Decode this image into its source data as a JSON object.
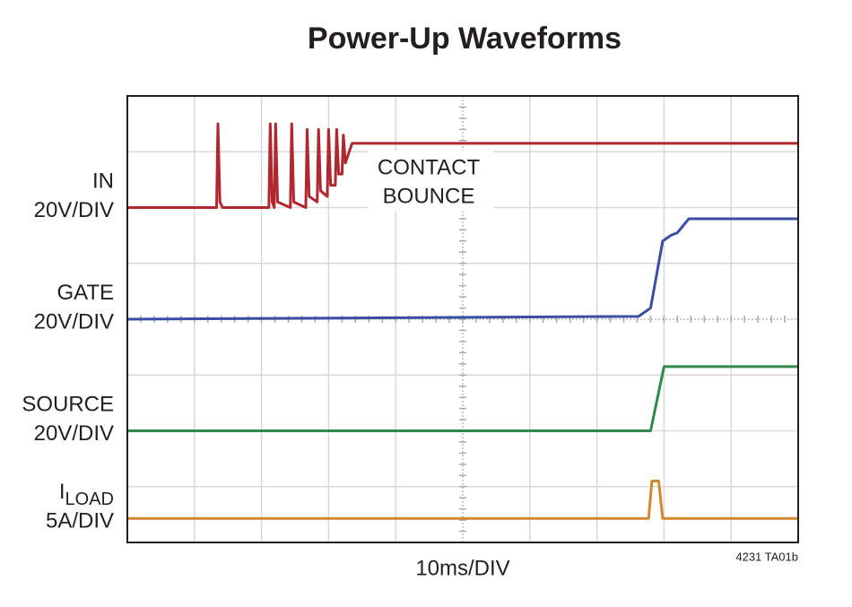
{
  "chart_data": {
    "type": "line",
    "title": "Power-Up Waveforms",
    "x_label": "10ms/DIV",
    "note": "4231 TA01b",
    "annotation": [
      "CONTACT",
      "BOUNCE"
    ],
    "xlim": [
      0,
      10
    ],
    "ylim": [
      0,
      8
    ],
    "xticks": [
      0,
      1,
      2,
      3,
      4,
      5,
      6,
      7,
      8,
      9,
      10
    ],
    "yticks": [
      0,
      1,
      2,
      3,
      4,
      5,
      6,
      7,
      8
    ],
    "grid": true,
    "series": [
      {
        "name": "IN",
        "scale": "20V/DIV",
        "color": "#b0272d",
        "x": [
          0,
          1.33,
          1.35,
          1.38,
          1.42,
          2.11,
          2.13,
          2.16,
          2.19,
          2.21,
          2.24,
          2.43,
          2.45,
          2.48,
          2.66,
          2.68,
          2.71,
          2.83,
          2.85,
          2.88,
          2.98,
          3.0,
          3.03,
          3.1,
          3.12,
          3.15,
          3.2,
          3.22,
          3.25,
          3.35,
          10
        ],
        "values": [
          6.0,
          6.0,
          7.5,
          6.1,
          6.0,
          6.0,
          7.5,
          6.1,
          6.0,
          7.5,
          6.1,
          6.0,
          7.5,
          6.1,
          6.0,
          7.4,
          6.2,
          6.1,
          7.4,
          6.3,
          6.2,
          7.4,
          6.4,
          6.4,
          7.4,
          6.6,
          6.6,
          7.3,
          6.8,
          7.15,
          7.15
        ]
      },
      {
        "name": "GATE",
        "scale": "20V/DIV",
        "color": "#3a4ea6",
        "x": [
          0,
          7.62,
          7.8,
          7.98,
          8.1,
          8.2,
          8.37,
          10
        ],
        "values": [
          4.0,
          4.05,
          4.2,
          5.4,
          5.5,
          5.55,
          5.8,
          5.8
        ]
      },
      {
        "name": "SOURCE",
        "scale": "20V/DIV",
        "color": "#2e8a48",
        "x": [
          0,
          7.8,
          8.0,
          10
        ],
        "values": [
          2.0,
          2.0,
          3.15,
          3.15
        ]
      },
      {
        "name": "I",
        "name_subscript": "LOAD",
        "scale": "5A/DIV",
        "color": "#d4882e",
        "x": [
          0,
          7.77,
          7.82,
          7.92,
          7.98,
          10
        ],
        "values": [
          0.43,
          0.43,
          1.1,
          1.1,
          0.43,
          0.43
        ]
      }
    ]
  }
}
